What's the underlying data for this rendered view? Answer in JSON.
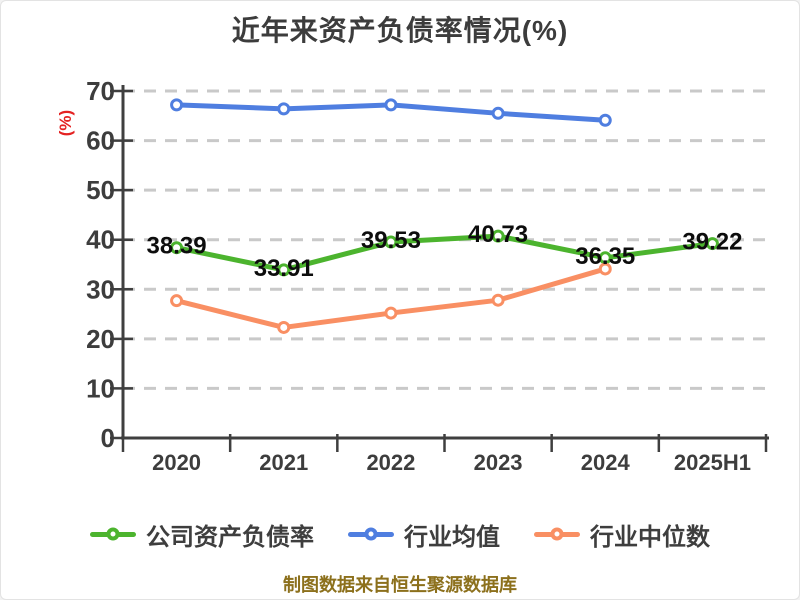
{
  "title": "近年来资产负债率情况(%)",
  "y_axis_unit": "(%)",
  "caption": "制图数据来自恒生聚源数据库",
  "colors": {
    "axis": "#3f3f3f",
    "grid": "#c9c9c9",
    "tick_label": "#3d3d3d",
    "data_label": "#0d0d0d",
    "y_unit_label": "#e42222",
    "caption": "#8c701c",
    "legend_text": "#3e3e3e",
    "marker_fill": "#ffffff"
  },
  "chart_data": {
    "type": "line",
    "title": "近年来资产负债率情况(%)",
    "categories": [
      "2020",
      "2021",
      "2022",
      "2023",
      "2024",
      "2025H1"
    ],
    "series": [
      {
        "name": "公司资产负债率",
        "color": "#4cb42e",
        "values": [
          38.39,
          33.91,
          39.53,
          40.73,
          36.35,
          39.22
        ],
        "show_labels": true
      },
      {
        "name": "行业均值",
        "color": "#4f7ee0",
        "values": [
          67.2,
          66.4,
          67.2,
          65.5,
          64.1,
          null
        ],
        "show_labels": false
      },
      {
        "name": "行业中位数",
        "color": "#f98f63",
        "values": [
          27.7,
          22.3,
          25.2,
          27.8,
          34.1,
          null
        ],
        "show_labels": false
      }
    ],
    "ylim": [
      0,
      70
    ],
    "yticks": [
      0,
      10,
      20,
      30,
      40,
      50,
      60,
      70
    ],
    "ylabel": "(%)",
    "xlabel": "",
    "grid": "horizontal-dashed",
    "legend_position": "bottom"
  }
}
